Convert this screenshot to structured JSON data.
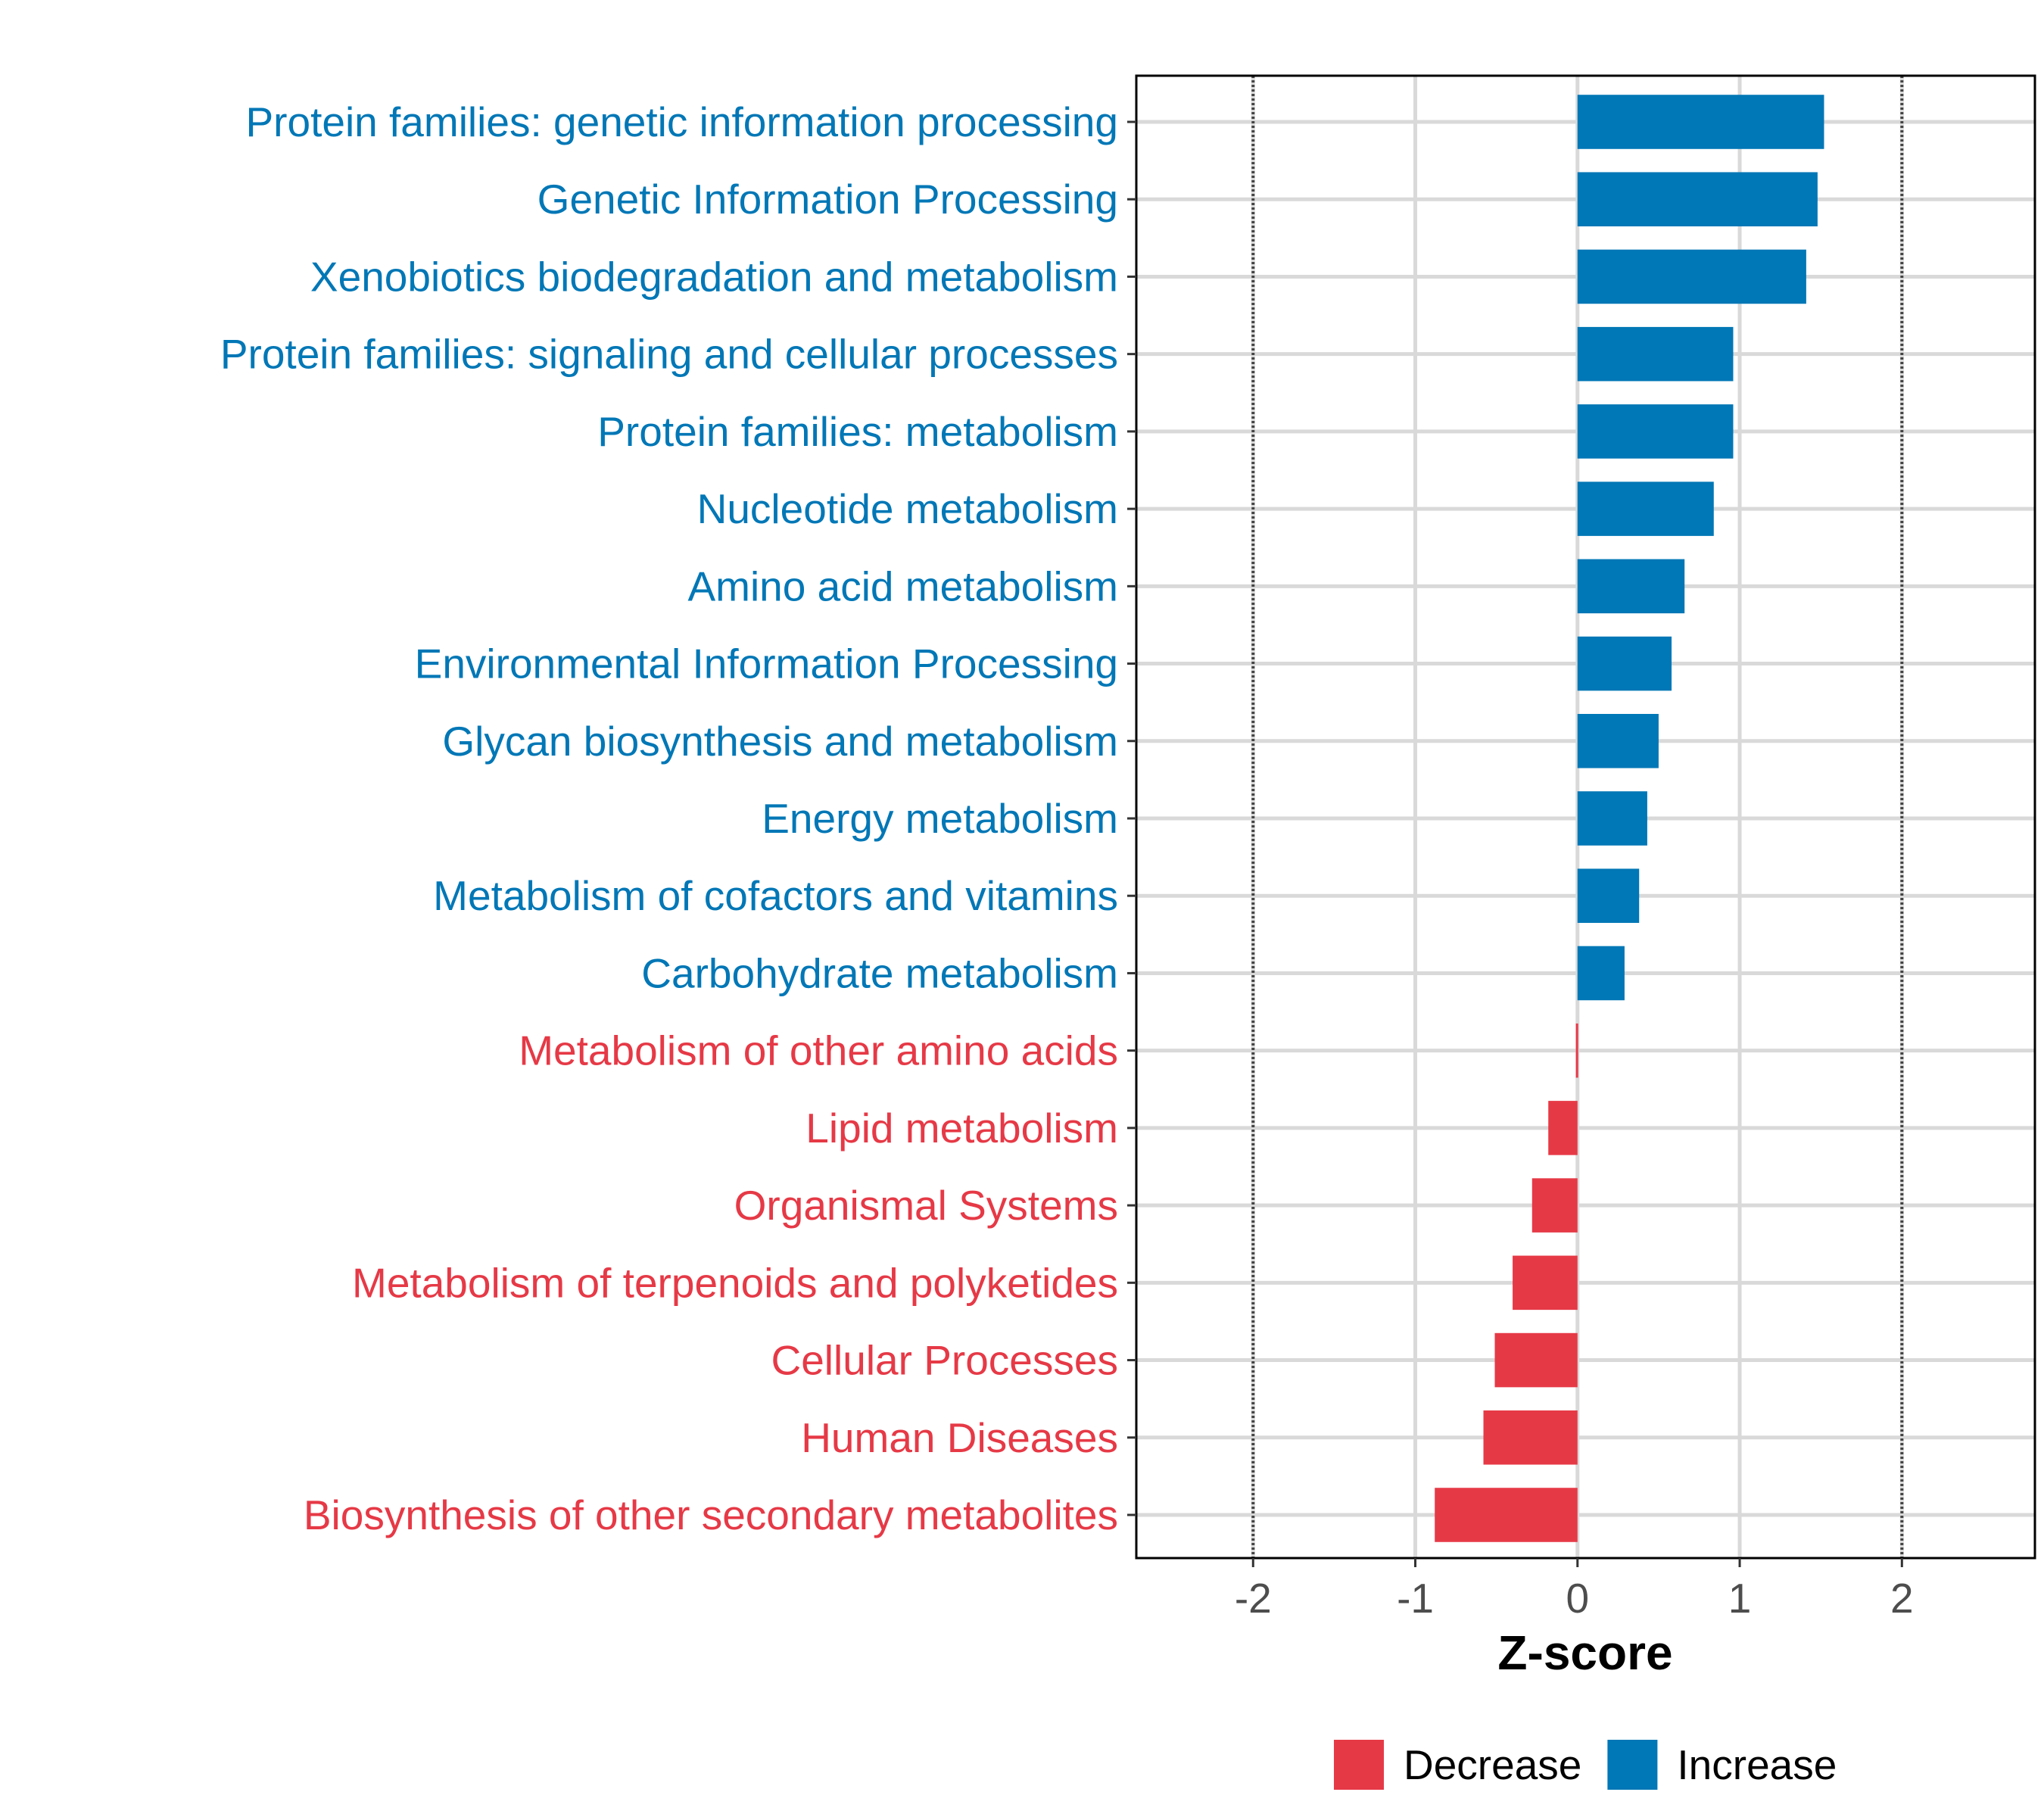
{
  "chart_data": {
    "type": "bar",
    "orientation": "horizontal",
    "title": "",
    "xlabel": "Z-score",
    "ylabel": "",
    "xlim": [
      -2.72,
      2.82
    ],
    "xticks": [
      -2,
      -1,
      0,
      1,
      2
    ],
    "xtick_labels": [
      "-2",
      "-1",
      "0",
      "1",
      "2"
    ],
    "reference_lines": [
      -2,
      2
    ],
    "grid": true,
    "categories": [
      "Protein families: genetic information processing",
      "Genetic Information Processing",
      "Xenobiotics biodegradation and metabolism",
      "Protein families: signaling and cellular processes",
      "Protein families: metabolism",
      "Nucleotide metabolism",
      "Amino acid metabolism",
      "Environmental Information Processing",
      "Glycan biosynthesis and metabolism",
      "Energy metabolism",
      "Metabolism of cofactors and vitamins",
      "Carbohydrate metabolism",
      "Metabolism of other amino acids",
      "Lipid metabolism",
      "Organismal Systems",
      "Metabolism of terpenoids and polyketides",
      "Cellular Processes",
      "Human Diseases",
      "Biosynthesis of other secondary metabolites"
    ],
    "values": [
      1.52,
      1.48,
      1.41,
      0.96,
      0.96,
      0.84,
      0.66,
      0.58,
      0.5,
      0.43,
      0.38,
      0.29,
      -0.01,
      -0.18,
      -0.28,
      -0.4,
      -0.51,
      -0.58,
      -0.88
    ],
    "legend": {
      "position": "bottom",
      "entries": [
        {
          "label": "Decrease",
          "color": "#E63946"
        },
        {
          "label": "Increase",
          "color": "#0077B6"
        }
      ]
    },
    "colors": {
      "increase": "#0077B6",
      "decrease": "#E63946",
      "grid": "#D9D9D9",
      "tick_text": "#4D4D4D"
    }
  }
}
